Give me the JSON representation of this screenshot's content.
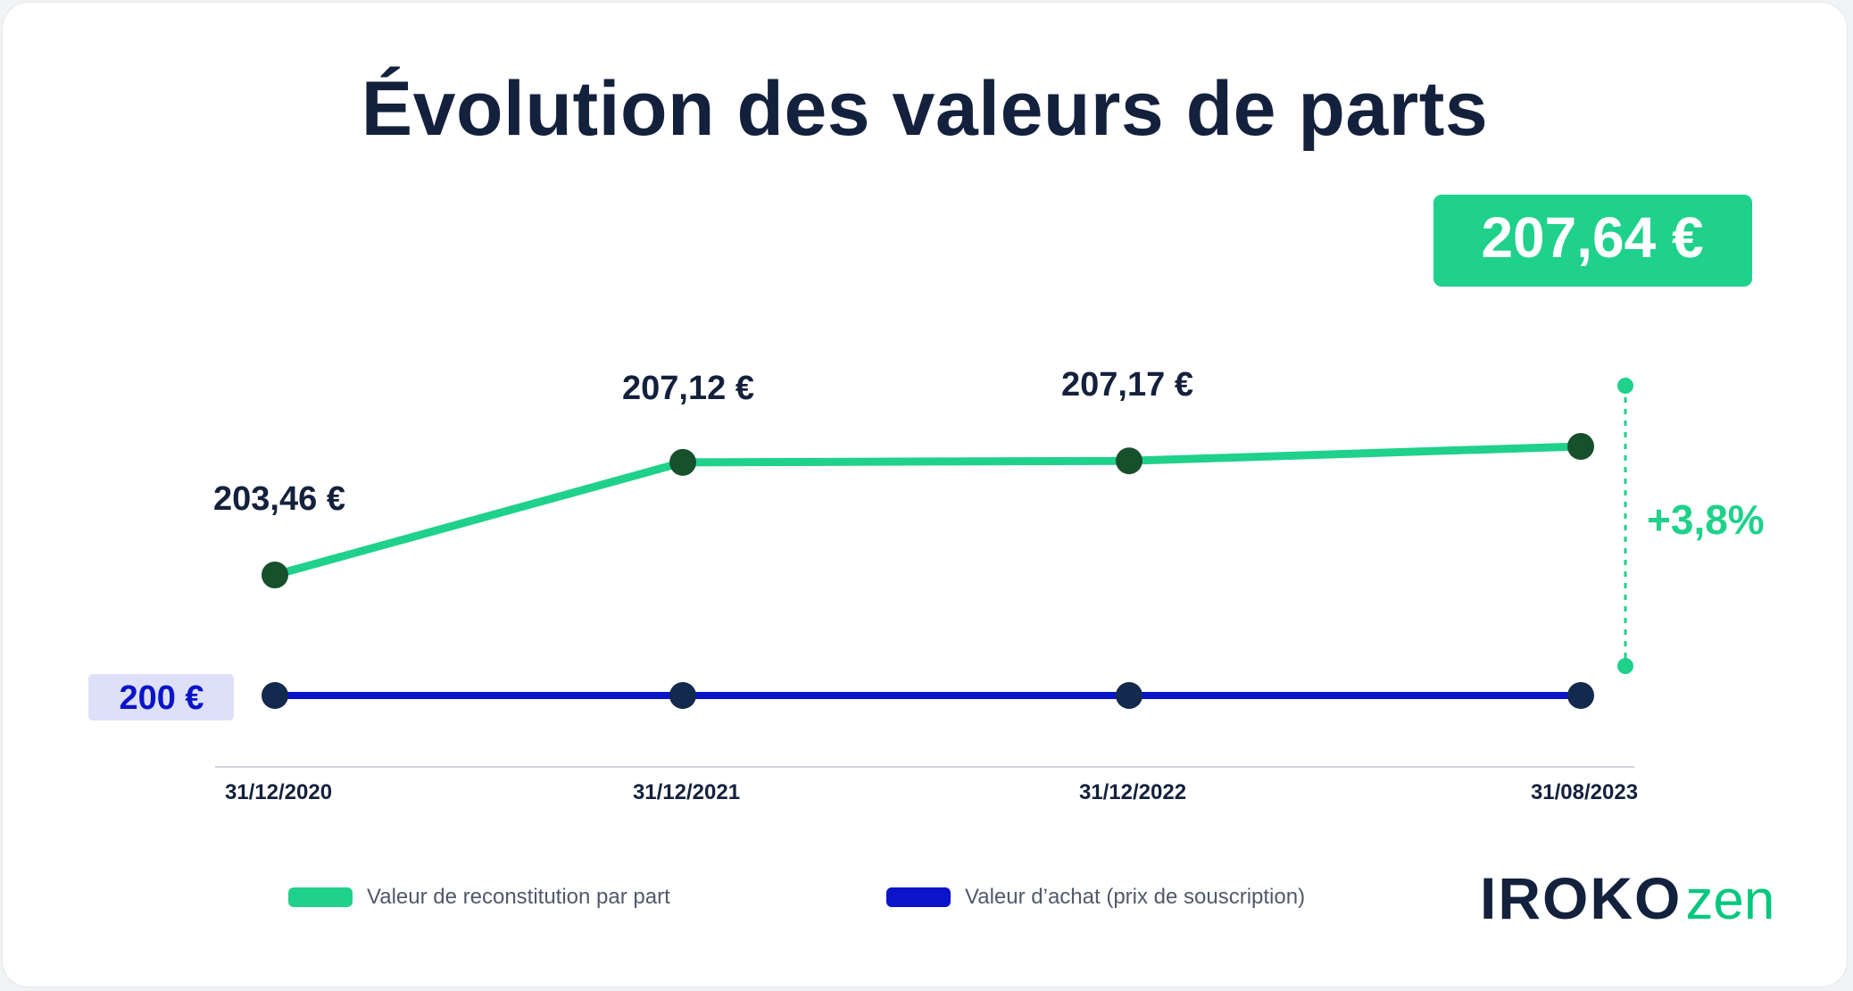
{
  "chart_data": {
    "type": "line",
    "title": "Évolution des valeurs de parts",
    "categories": [
      "31/12/2020",
      "31/12/2021",
      "31/12/2022",
      "31/08/2023"
    ],
    "series": [
      {
        "name": "Valeur de reconstitution par part",
        "values": [
          203.46,
          207.12,
          207.17,
          207.64
        ],
        "labels": [
          "203,46 €",
          "207,12 €",
          "207,17 €",
          "207,64 €"
        ],
        "color": "#1fd18b",
        "marker_color": "#17502c"
      },
      {
        "name": "Valeur d’achat (prix de souscription)",
        "values": [
          200,
          200,
          200,
          200
        ],
        "labels": [
          "200 €"
        ],
        "color": "#0a14c9",
        "marker_color": "#13294d"
      }
    ],
    "annotations": [
      {
        "text": "+3,8%",
        "color": "#1fd18b"
      }
    ],
    "grid": false
  },
  "legend": {
    "items": [
      {
        "label": "Valeur de reconstitution par part",
        "color": "#1fd18b"
      },
      {
        "label": "Valeur d’achat (prix de souscription)",
        "color": "#0a14c9"
      }
    ]
  },
  "brand": {
    "name_bold": "IROKO",
    "name_light": "zen"
  },
  "colors": {
    "title": "#14213d",
    "accent": "#00c77f",
    "highlight_box": "#1fd18b",
    "baseline_tag_bg": "#dde0f8"
  }
}
